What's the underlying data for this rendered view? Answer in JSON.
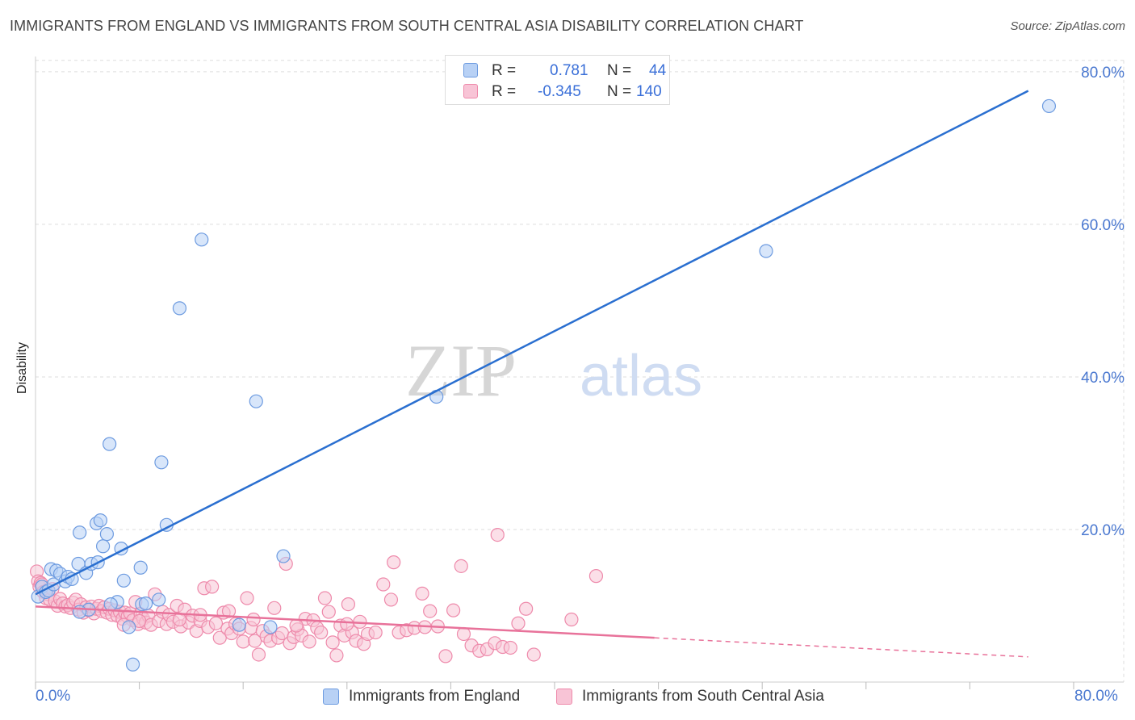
{
  "header": {
    "title": "IMMIGRANTS FROM ENGLAND VS IMMIGRANTS FROM SOUTH CENTRAL ASIA DISABILITY CORRELATION CHART",
    "source": "Source: ZipAtlas.com"
  },
  "watermark": {
    "part1": "ZIP",
    "part2": "atlas"
  },
  "legend": {
    "r_label": "R =",
    "n_label": "N =",
    "series": [
      {
        "r": "0.781",
        "n": "44"
      },
      {
        "r": "-0.345",
        "n": "140"
      }
    ]
  },
  "colors": {
    "england_fill": "#b8d1f5",
    "england_stroke": "#6d9be0",
    "england_line": "#2a6fd0",
    "asia_fill": "#f8c4d6",
    "asia_stroke": "#ee8aab",
    "asia_line": "#e8729a",
    "tick_text": "#4a78d0",
    "grid": "#dddddd"
  },
  "chart_data": {
    "type": "scatter",
    "title": "IMMIGRANTS FROM ENGLAND VS IMMIGRANTS FROM SOUTH CENTRAL ASIA DISABILITY CORRELATION CHART",
    "xlabel": "",
    "ylabel": "Disability",
    "xlim": [
      0,
      80
    ],
    "ylim": [
      0,
      82
    ],
    "x_tick_labels": [
      "0.0%",
      "80.0%"
    ],
    "y_ticks": [
      20,
      40,
      60,
      80
    ],
    "y_tick_labels": [
      "20.0%",
      "40.0%",
      "60.0%",
      "80.0%"
    ],
    "grid": true,
    "series": [
      {
        "name": "Immigrants from England",
        "r": 0.781,
        "n": 44,
        "trend": {
          "x1": 0,
          "y1": 11.5,
          "x2": 76.5,
          "y2": 77.5,
          "dashed_to": null
        },
        "points": [
          [
            0.2,
            11.2
          ],
          [
            0.5,
            12.5
          ],
          [
            0.8,
            11.8
          ],
          [
            1.0,
            12.0
          ],
          [
            1.2,
            14.8
          ],
          [
            1.4,
            12.8
          ],
          [
            1.6,
            14.6
          ],
          [
            1.9,
            14.2
          ],
          [
            2.3,
            13.2
          ],
          [
            2.5,
            13.8
          ],
          [
            2.8,
            13.5
          ],
          [
            3.3,
            15.5
          ],
          [
            3.9,
            14.3
          ],
          [
            3.4,
            19.6
          ],
          [
            4.3,
            15.5
          ],
          [
            4.8,
            15.7
          ],
          [
            4.7,
            20.8
          ],
          [
            5.0,
            21.2
          ],
          [
            5.2,
            17.8
          ],
          [
            5.5,
            19.4
          ],
          [
            6.6,
            17.5
          ],
          [
            6.8,
            13.3
          ],
          [
            7.2,
            7.2
          ],
          [
            7.5,
            2.3
          ],
          [
            8.1,
            15.0
          ],
          [
            8.2,
            10.2
          ],
          [
            8.5,
            10.3
          ],
          [
            9.7,
            28.8
          ],
          [
            10.1,
            20.6
          ],
          [
            11.1,
            49.0
          ],
          [
            12.8,
            58.0
          ],
          [
            6.3,
            10.5
          ],
          [
            5.7,
            31.2
          ],
          [
            17.0,
            36.8
          ],
          [
            19.1,
            16.5
          ],
          [
            18.1,
            7.2
          ],
          [
            30.9,
            37.4
          ],
          [
            56.3,
            56.5
          ],
          [
            78.1,
            75.5
          ],
          [
            5.8,
            10.2
          ],
          [
            4.1,
            9.5
          ],
          [
            3.4,
            9.2
          ],
          [
            9.5,
            10.8
          ],
          [
            15.7,
            7.5
          ]
        ]
      },
      {
        "name": "Immigrants from South Central Asia",
        "r": -0.345,
        "n": 140,
        "trend": {
          "x1": 0,
          "y1": 9.9,
          "x2": 47.7,
          "y2": 5.8,
          "dashed_to": [
            76.5,
            3.3
          ]
        },
        "points": [
          [
            0.1,
            14.5
          ],
          [
            0.2,
            13.2
          ],
          [
            0.3,
            12.5
          ],
          [
            0.4,
            13.0
          ],
          [
            0.5,
            12.8
          ],
          [
            0.6,
            11.8
          ],
          [
            0.8,
            11.0
          ],
          [
            0.9,
            12.0
          ],
          [
            1.0,
            11.5
          ],
          [
            1.1,
            10.8
          ],
          [
            1.3,
            12.2
          ],
          [
            1.5,
            10.6
          ],
          [
            1.7,
            10.0
          ],
          [
            1.9,
            10.9
          ],
          [
            2.1,
            10.3
          ],
          [
            2.3,
            9.9
          ],
          [
            2.5,
            10.1
          ],
          [
            2.7,
            9.7
          ],
          [
            2.9,
            10.4
          ],
          [
            3.1,
            10.8
          ],
          [
            3.3,
            9.5
          ],
          [
            3.5,
            10.2
          ],
          [
            3.7,
            9.1
          ],
          [
            3.9,
            9.8
          ],
          [
            4.1,
            9.4
          ],
          [
            4.3,
            9.9
          ],
          [
            4.5,
            9.0
          ],
          [
            4.7,
            9.6
          ],
          [
            4.9,
            10.0
          ],
          [
            5.1,
            9.3
          ],
          [
            5.3,
            9.8
          ],
          [
            5.5,
            9.1
          ],
          [
            5.7,
            9.6
          ],
          [
            5.9,
            8.8
          ],
          [
            6.1,
            9.4
          ],
          [
            6.3,
            8.7
          ],
          [
            6.5,
            9.2
          ],
          [
            6.7,
            8.3
          ],
          [
            6.9,
            9.1
          ],
          [
            7.1,
            8.6
          ],
          [
            7.3,
            9.0
          ],
          [
            7.5,
            8.1
          ],
          [
            7.7,
            10.5
          ],
          [
            7.9,
            7.6
          ],
          [
            8.1,
            8.9
          ],
          [
            8.3,
            8.3
          ],
          [
            8.5,
            7.8
          ],
          [
            8.7,
            8.7
          ],
          [
            8.9,
            7.5
          ],
          [
            9.2,
            11.5
          ],
          [
            9.5,
            8.0
          ],
          [
            9.8,
            9.2
          ],
          [
            10.1,
            7.6
          ],
          [
            10.3,
            8.8
          ],
          [
            10.6,
            7.9
          ],
          [
            10.9,
            10.0
          ],
          [
            11.2,
            7.3
          ],
          [
            11.5,
            9.5
          ],
          [
            11.8,
            7.8
          ],
          [
            12.1,
            8.7
          ],
          [
            12.4,
            6.7
          ],
          [
            12.7,
            8.0
          ],
          [
            13.0,
            12.3
          ],
          [
            13.3,
            7.2
          ],
          [
            13.6,
            12.5
          ],
          [
            13.9,
            7.7
          ],
          [
            14.2,
            5.8
          ],
          [
            14.5,
            9.1
          ],
          [
            14.8,
            7.0
          ],
          [
            15.1,
            6.4
          ],
          [
            15.4,
            7.6
          ],
          [
            15.7,
            7.0
          ],
          [
            16.0,
            5.3
          ],
          [
            16.3,
            11.0
          ],
          [
            16.6,
            7.1
          ],
          [
            16.9,
            5.4
          ],
          [
            17.2,
            3.6
          ],
          [
            17.5,
            6.7
          ],
          [
            17.8,
            6.0
          ],
          [
            18.1,
            5.4
          ],
          [
            18.4,
            9.7
          ],
          [
            18.7,
            5.8
          ],
          [
            19.0,
            6.4
          ],
          [
            19.3,
            15.5
          ],
          [
            19.6,
            5.1
          ],
          [
            19.9,
            5.9
          ],
          [
            20.2,
            6.9
          ],
          [
            20.5,
            6.1
          ],
          [
            20.8,
            8.3
          ],
          [
            21.1,
            5.3
          ],
          [
            21.4,
            8.1
          ],
          [
            21.7,
            7.1
          ],
          [
            22.0,
            6.5
          ],
          [
            22.3,
            11.0
          ],
          [
            22.6,
            9.2
          ],
          [
            22.9,
            5.2
          ],
          [
            23.2,
            3.5
          ],
          [
            23.5,
            7.4
          ],
          [
            23.8,
            6.1
          ],
          [
            24.1,
            10.2
          ],
          [
            24.4,
            6.5
          ],
          [
            24.7,
            5.4
          ],
          [
            25.0,
            7.9
          ],
          [
            25.3,
            5.0
          ],
          [
            25.6,
            6.3
          ],
          [
            26.2,
            6.5
          ],
          [
            26.8,
            12.8
          ],
          [
            27.4,
            10.8
          ],
          [
            27.6,
            15.7
          ],
          [
            28.0,
            6.5
          ],
          [
            28.6,
            6.8
          ],
          [
            29.2,
            7.1
          ],
          [
            29.8,
            11.6
          ],
          [
            30.4,
            9.3
          ],
          [
            31.0,
            7.3
          ],
          [
            31.6,
            3.4
          ],
          [
            32.2,
            9.4
          ],
          [
            32.8,
            15.2
          ],
          [
            33.0,
            6.3
          ],
          [
            33.6,
            4.8
          ],
          [
            34.2,
            4.1
          ],
          [
            34.8,
            4.3
          ],
          [
            35.4,
            5.1
          ],
          [
            35.6,
            19.3
          ],
          [
            36.0,
            4.6
          ],
          [
            36.6,
            4.5
          ],
          [
            37.2,
            7.7
          ],
          [
            37.8,
            9.6
          ],
          [
            38.4,
            3.6
          ],
          [
            41.3,
            8.2
          ],
          [
            43.2,
            13.9
          ],
          [
            12.7,
            8.8
          ],
          [
            14.9,
            9.3
          ],
          [
            6.8,
            7.5
          ],
          [
            8.0,
            8.0
          ],
          [
            11.1,
            8.2
          ],
          [
            16.8,
            8.2
          ],
          [
            20.1,
            7.4
          ],
          [
            24.0,
            7.6
          ],
          [
            30.0,
            7.2
          ]
        ]
      }
    ]
  },
  "bottom_legend": {
    "items": [
      "Immigrants from England",
      "Immigrants from South Central Asia"
    ]
  },
  "axis": {
    "x_left_label": "0.0%",
    "x_right_label": "80.0%"
  }
}
